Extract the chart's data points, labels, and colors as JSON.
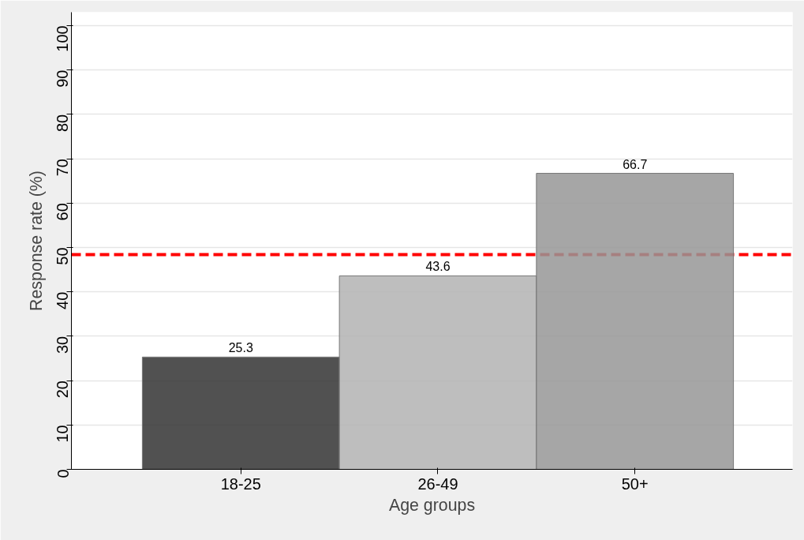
{
  "chart_data": {
    "type": "bar",
    "xlabel": "Age groups",
    "ylabel": "Response rate (%)",
    "categories": [
      "18-25",
      "26-49",
      "50+"
    ],
    "values": [
      25.3,
      43.6,
      66.7
    ],
    "colors": [
      "#333333",
      "#b3b3b3",
      "#969696"
    ],
    "ylim": [
      0,
      103
    ],
    "yticks": [
      0,
      10,
      20,
      30,
      40,
      50,
      60,
      70,
      80,
      90,
      100
    ],
    "grid": "y",
    "data_labels": true,
    "ref_lines": [
      {
        "axis": "y",
        "value": 48.4,
        "color": "#ff0000",
        "line_style": "dashed"
      }
    ]
  }
}
